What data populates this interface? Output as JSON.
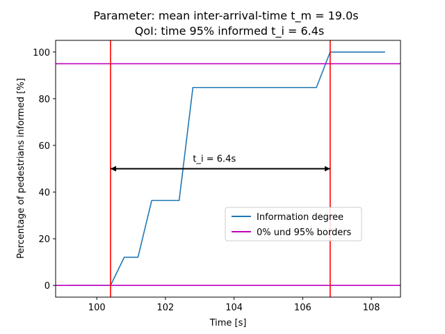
{
  "chart_data": {
    "type": "line",
    "title_line1": "Parameter: mean inter-arrival-time t_m = 19.0s",
    "title_line2": "QoI: time 95% informed t_i = 6.4s",
    "xlabel": "Time [s]",
    "ylabel": "Percentage of pedestrians informed [%]",
    "xlim": [
      98.8,
      108.85
    ],
    "ylim": [
      -5,
      105
    ],
    "xticks": [
      100,
      102,
      104,
      106,
      108
    ],
    "yticks": [
      0,
      20,
      40,
      60,
      80,
      100
    ],
    "grid": false,
    "legend_position": "center-right",
    "series": [
      {
        "name": "Information degree",
        "color": "#1f77b4",
        "x": [
          99.2,
          100.4,
          100.8,
          101.2,
          101.6,
          102.0,
          102.4,
          102.8,
          103.2,
          103.6,
          104.0,
          104.4,
          104.8,
          105.2,
          105.6,
          106.0,
          106.4,
          106.8,
          107.2,
          107.6,
          108.0,
          108.4
        ],
        "y": [
          0,
          0,
          12.1,
          12.1,
          36.4,
          36.4,
          36.4,
          84.8,
          84.8,
          84.8,
          84.8,
          84.8,
          84.8,
          84.8,
          84.8,
          84.8,
          84.8,
          100,
          100,
          100,
          100,
          100
        ]
      },
      {
        "name": "0% und 95% borders",
        "color": "#bf00bf",
        "hlines": [
          0,
          95
        ]
      }
    ],
    "vlines": {
      "color": "#ff0000",
      "x": [
        100.4,
        106.8
      ]
    },
    "arrow": {
      "x_start": 100.4,
      "x_end": 106.8,
      "y": 50
    },
    "annotation": {
      "text": "t_i = 6.4s",
      "x": 102.8,
      "y": 53
    }
  }
}
